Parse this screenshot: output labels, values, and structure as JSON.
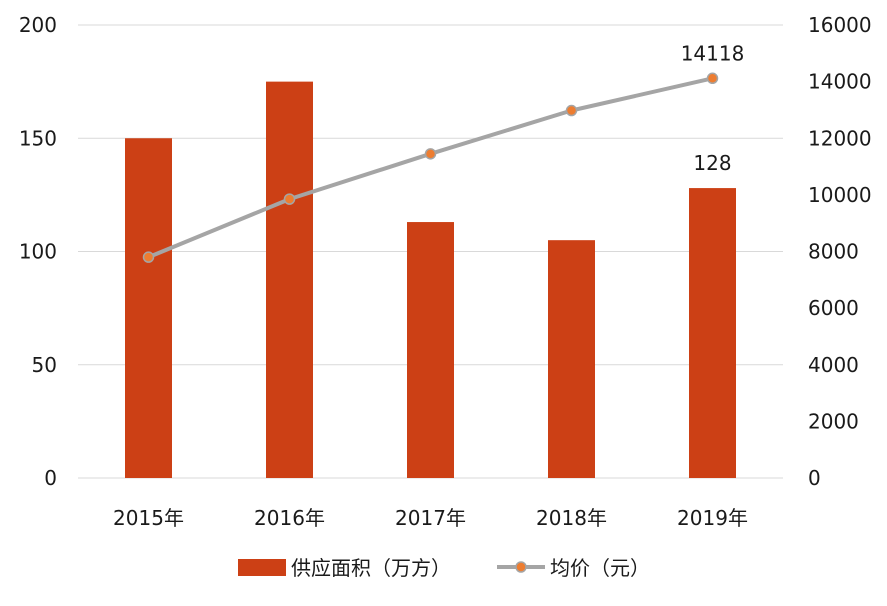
{
  "chart_data": {
    "type": "bar",
    "categories": [
      "2015年",
      "2016年",
      "2017年",
      "2018年",
      "2019年"
    ],
    "series": [
      {
        "name": "供应面积（万方）",
        "type": "bar",
        "axis": "left",
        "color": "#cc4015",
        "values": [
          150,
          175,
          113,
          105,
          128
        ]
      },
      {
        "name": "均价（元）",
        "type": "line",
        "axis": "right",
        "color": "#a5a5a5",
        "marker_color": "#ed7d31",
        "values": [
          7800,
          9850,
          11450,
          12980,
          14118
        ]
      }
    ],
    "y_left": {
      "ylim": [
        0,
        200
      ],
      "ticks": [
        "0",
        "50",
        "100",
        "150",
        "200"
      ]
    },
    "y_right": {
      "ylim": [
        0,
        16000
      ],
      "ticks": [
        "0",
        "2000",
        "4000",
        "6000",
        "8000",
        "10000",
        "12000",
        "14000",
        "16000"
      ]
    },
    "data_labels": [
      {
        "series": 0,
        "index": 4,
        "text": "128"
      },
      {
        "series": 1,
        "index": 4,
        "text": "14118"
      }
    ],
    "grid": true,
    "legend": {
      "position": "bottom",
      "items": [
        "供应面积（万方）",
        "均价（元）"
      ]
    }
  }
}
